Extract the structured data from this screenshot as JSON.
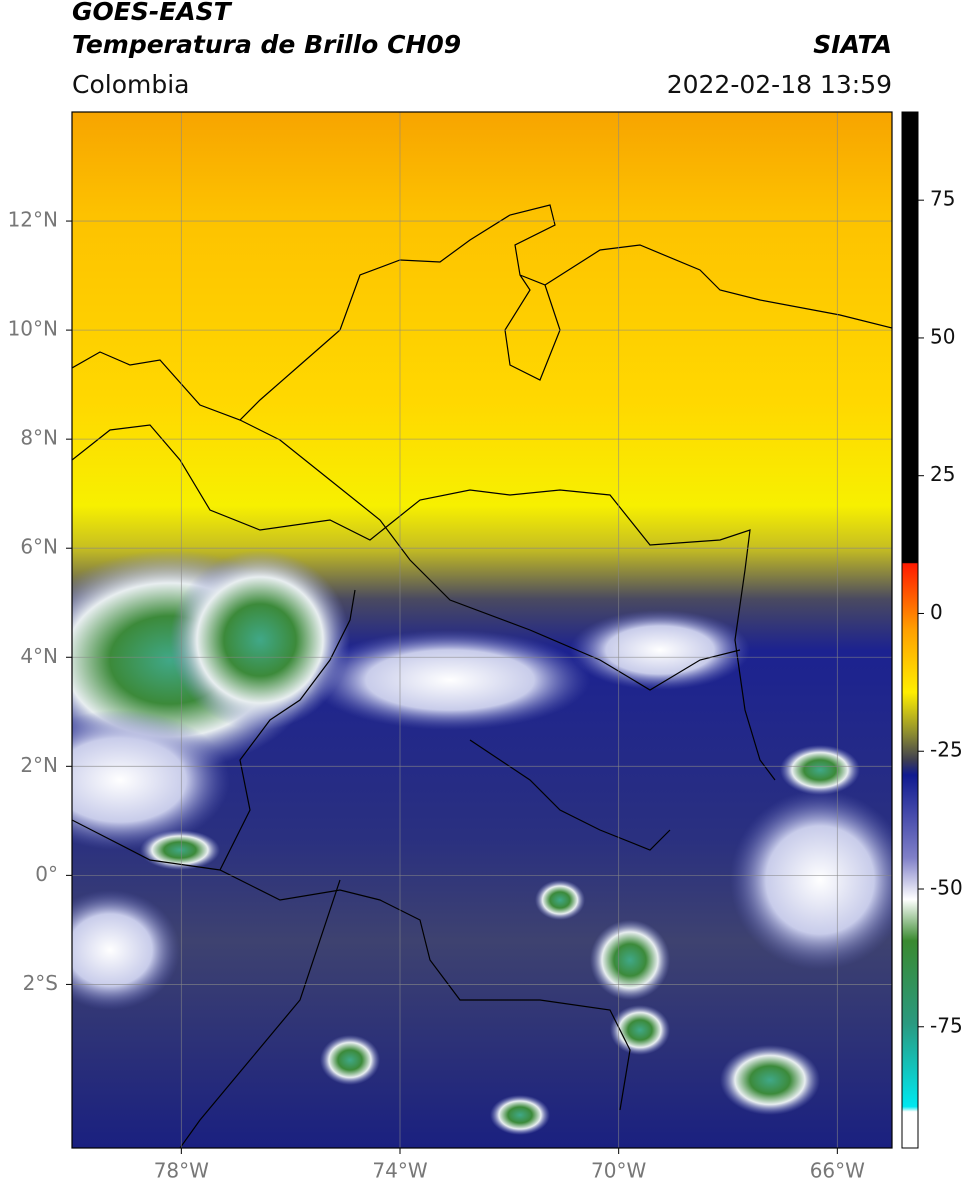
{
  "map": {
    "title": "GOES-EAST",
    "subtitle": "Temperatura de Brillo CH09",
    "brand": "SIATA",
    "region": "Colombia",
    "datetime": "2022-02-18 13:59",
    "xlim": [
      -80,
      -65
    ],
    "ylim": [
      -5,
      14
    ],
    "xticks": [
      {
        "value": -78,
        "label": "78°W"
      },
      {
        "value": -74,
        "label": "74°W"
      },
      {
        "value": -70,
        "label": "70°W"
      },
      {
        "value": -66,
        "label": "66°W"
      }
    ],
    "yticks": [
      {
        "value": 12,
        "label": "12°N"
      },
      {
        "value": 10,
        "label": "10°N"
      },
      {
        "value": 8,
        "label": "8°N"
      },
      {
        "value": 6,
        "label": "6°N"
      },
      {
        "value": 4,
        "label": "4°N"
      },
      {
        "value": 2,
        "label": "2°N"
      },
      {
        "value": 0,
        "label": "0°"
      },
      {
        "value": -2,
        "label": "2°S"
      }
    ],
    "grid": true,
    "colorbar": {
      "lim": [
        -97,
        91
      ],
      "ticks": [
        75,
        50,
        25,
        0,
        -25,
        -50,
        -75
      ]
    }
  }
}
